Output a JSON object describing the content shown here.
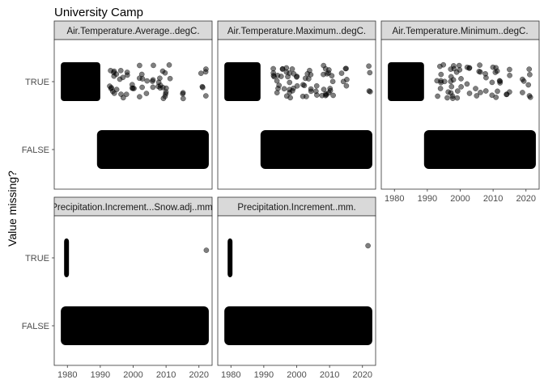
{
  "chart_data": {
    "type": "scatter",
    "title": "University Camp",
    "ylabel": "Value missing?",
    "xlabel": "",
    "y_categories": [
      "TRUE",
      "FALSE"
    ],
    "x_ticks": [
      1980,
      1990,
      2000,
      2010,
      2020
    ],
    "xlim": [
      1976,
      2024
    ],
    "grid": false,
    "legend": "none",
    "facets": [
      {
        "label": "Air.Temperature.Average..degC.",
        "true_dense_range": [
          1978,
          1990
        ],
        "false_dense_range": [
          1989,
          2023
        ],
        "true_scatter_years": [
          1993,
          1994,
          1995,
          1996,
          1997,
          1998,
          2000,
          2002,
          2003,
          2004,
          2006,
          2008,
          2009,
          2010,
          2011,
          2015,
          2021,
          2022
        ]
      },
      {
        "label": "Air.Temperature.Maximum..degC.",
        "true_dense_range": [
          1978,
          1989
        ],
        "false_dense_range": [
          1989,
          2023
        ],
        "true_scatter_years": [
          1993,
          1994,
          1995,
          1996,
          1997,
          1998,
          1999,
          2000,
          2002,
          2003,
          2004,
          2006,
          2008,
          2009,
          2010,
          2011,
          2014,
          2015,
          2022
        ]
      },
      {
        "label": "Air.Temperature.Minimum..degC.",
        "true_dense_range": [
          1978,
          1989
        ],
        "false_dense_range": [
          1989,
          2023
        ],
        "true_scatter_years": [
          1993,
          1994,
          1995,
          1996,
          1997,
          1998,
          1999,
          2000,
          2002,
          2003,
          2005,
          2006,
          2008,
          2010,
          2011,
          2012,
          2014,
          2015,
          2019,
          2021
        ]
      },
      {
        "label": "Precipitation.Increment...Snow.adj..mm.",
        "true_dense_range": [
          1979,
          1980
        ],
        "false_dense_range": [
          1978,
          2023
        ],
        "true_scatter_years": [
          2022
        ]
      },
      {
        "label": "Precipitation.Increment..mm.",
        "true_dense_range": [
          1979,
          1980
        ],
        "false_dense_range": [
          1978,
          2023
        ],
        "true_scatter_years": [
          2022
        ]
      }
    ]
  }
}
